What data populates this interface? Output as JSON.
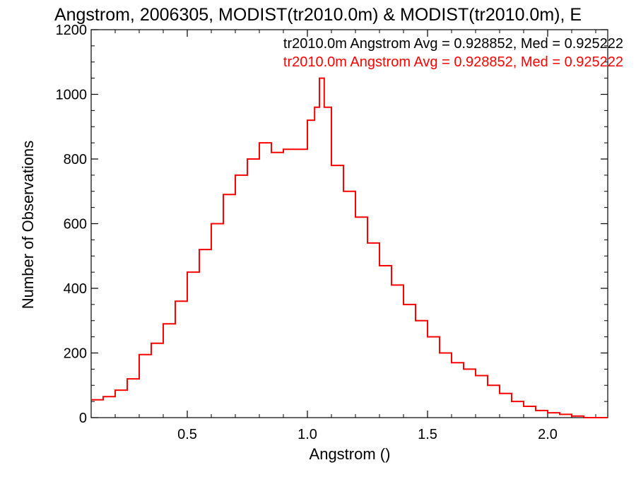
{
  "chart_data": {
    "type": "line",
    "style": "step histogram",
    "title": "Angstrom, 2006305, MODIST(tr2010.0m) & MODIST(tr2010.0m), E",
    "xlabel": "Angstrom ()",
    "ylabel": "Number of Observations",
    "xlim": [
      0.1,
      2.25
    ],
    "ylim": [
      0,
      1200
    ],
    "x_ticks": [
      "0.5",
      "1.0",
      "1.5",
      "2.0"
    ],
    "x_tick_values": [
      0.5,
      1.0,
      1.5,
      2.0
    ],
    "y_ticks": [
      "0",
      "200",
      "400",
      "600",
      "800",
      "1000",
      "1200"
    ],
    "y_tick_values": [
      0,
      200,
      400,
      600,
      800,
      1000,
      1200
    ],
    "grid": false,
    "legend_position": "top-right",
    "legend": [
      {
        "text": "tr2010.0m Angstrom Avg = 0.928852, Med = 0.925222",
        "color": "#000000"
      },
      {
        "text": "tr2010.0m Angstrom Avg = 0.928852, Med = 0.925222",
        "color": "#ff0000"
      }
    ],
    "series": [
      {
        "color": "#ff0000",
        "x": [
          0.1,
          0.15,
          0.2,
          0.25,
          0.3,
          0.35,
          0.4,
          0.45,
          0.5,
          0.55,
          0.6,
          0.65,
          0.7,
          0.75,
          0.8,
          0.85,
          0.9,
          0.95,
          1.0,
          1.03,
          1.05,
          1.07,
          1.1,
          1.15,
          1.2,
          1.25,
          1.3,
          1.35,
          1.4,
          1.45,
          1.5,
          1.55,
          1.6,
          1.65,
          1.7,
          1.75,
          1.8,
          1.85,
          1.9,
          1.95,
          2.0,
          2.05,
          2.1,
          2.15,
          2.2
        ],
        "y": [
          55,
          65,
          85,
          120,
          195,
          230,
          290,
          360,
          450,
          520,
          600,
          690,
          750,
          800,
          850,
          820,
          830,
          830,
          920,
          960,
          1050,
          960,
          780,
          700,
          620,
          540,
          470,
          410,
          350,
          300,
          250,
          200,
          170,
          150,
          130,
          100,
          75,
          50,
          35,
          22,
          15,
          10,
          5,
          0,
          0
        ]
      }
    ]
  }
}
